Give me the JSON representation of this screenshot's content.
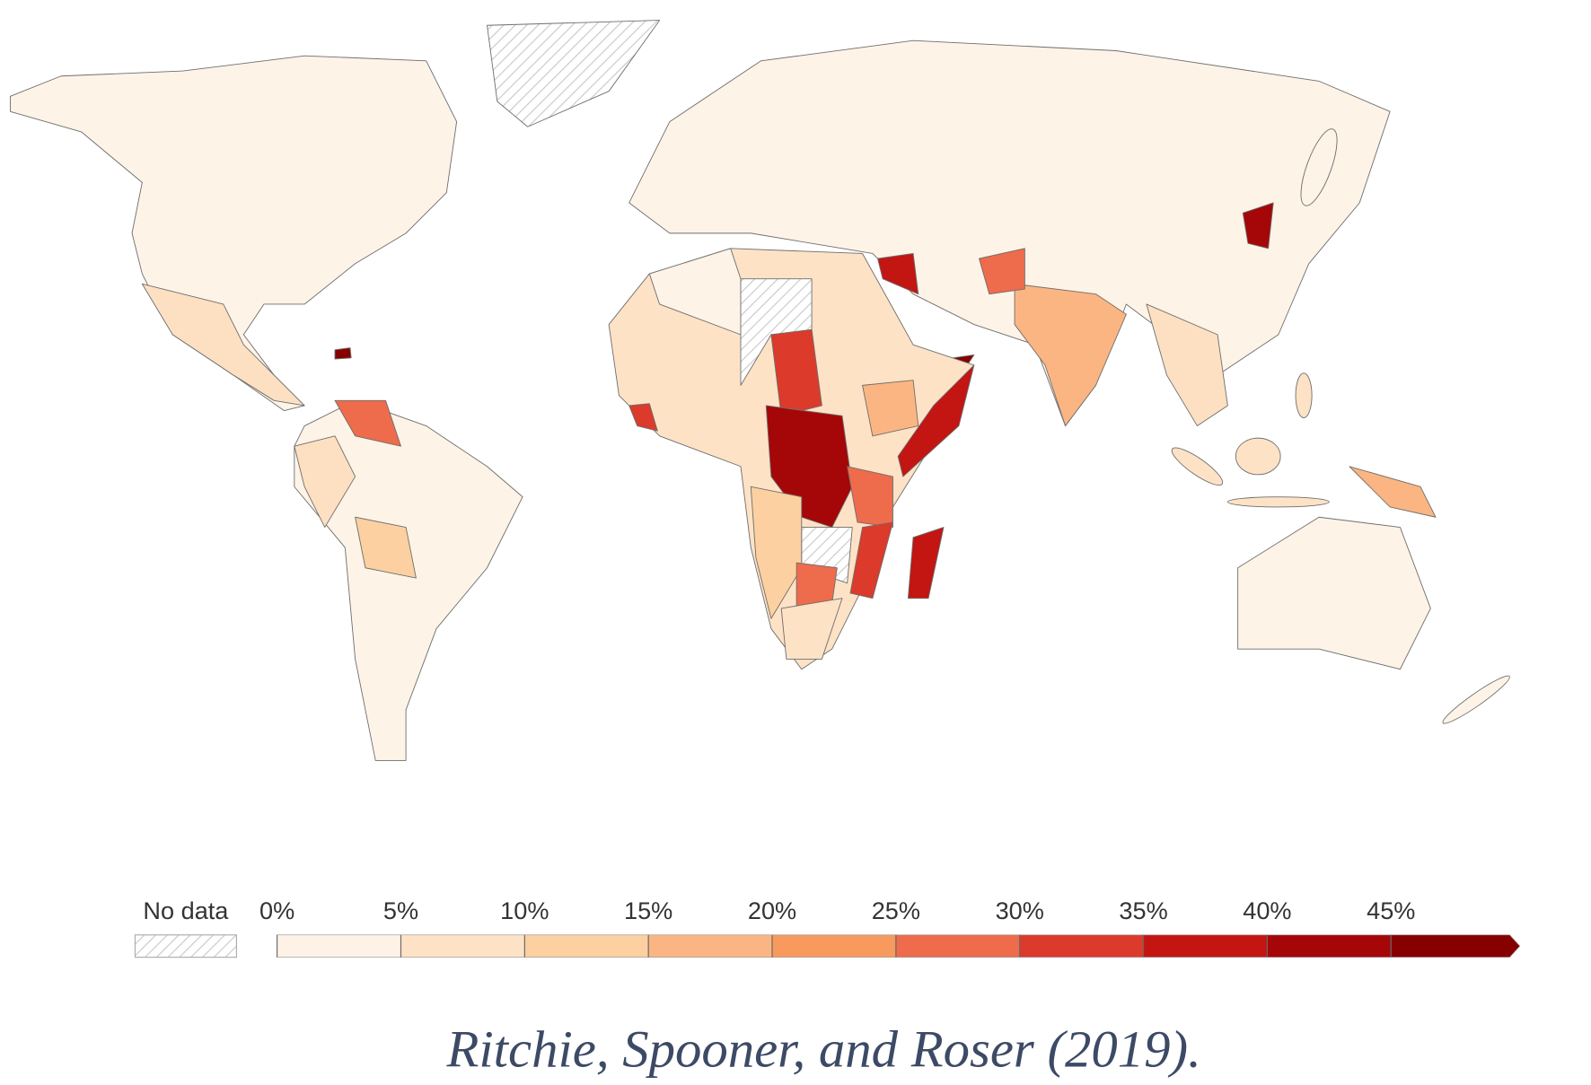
{
  "legend": {
    "no_data_label": "No data",
    "ticks": [
      {
        "value": 0,
        "label": "0%"
      },
      {
        "value": 5,
        "label": "5%"
      },
      {
        "value": 10,
        "label": "10%"
      },
      {
        "value": 15,
        "label": "15%"
      },
      {
        "value": 20,
        "label": "20%"
      },
      {
        "value": 25,
        "label": "25%"
      },
      {
        "value": 30,
        "label": "30%"
      },
      {
        "value": 35,
        "label": "35%"
      },
      {
        "value": 40,
        "label": "40%"
      },
      {
        "value": 45,
        "label": "45%"
      }
    ],
    "colors": [
      "#fef2e6",
      "#fde2c6",
      "#fcd0a0",
      "#fbb582",
      "#f8995e",
      "#ee6b4c",
      "#dc3a2b",
      "#c31512",
      "#a50608",
      "#860000"
    ]
  },
  "caption": "Ritchie, Spooner, and Roser (2019)."
}
